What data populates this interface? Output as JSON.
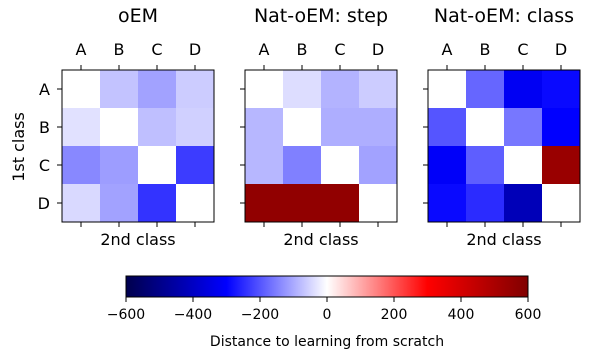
{
  "chart_data": {
    "type": "heatmap",
    "panels": [
      {
        "title": "oEM",
        "values": [
          [
            0,
            -70,
            -110,
            -60
          ],
          [
            -35,
            0,
            -75,
            -55
          ],
          [
            -140,
            -115,
            0,
            -230
          ],
          [
            -45,
            -110,
            -240,
            0
          ]
        ]
      },
      {
        "title": "Nat-oEM: step",
        "values": [
          [
            0,
            -40,
            -90,
            -60
          ],
          [
            -85,
            0,
            -95,
            -95
          ],
          [
            -85,
            -150,
            0,
            -110
          ],
          [
            560,
            560,
            560,
            0
          ]
        ]
      },
      {
        "title": "Nat-oEM: class",
        "values": [
          [
            0,
            -180,
            -320,
            -290
          ],
          [
            -200,
            0,
            -160,
            -300
          ],
          [
            -310,
            -190,
            0,
            540
          ],
          [
            -290,
            -250,
            -420,
            0
          ]
        ]
      }
    ],
    "x_categories": [
      "A",
      "B",
      "C",
      "D"
    ],
    "y_categories": [
      "A",
      "B",
      "C",
      "D"
    ],
    "xlabel": "2nd class",
    "ylabel": "1st class",
    "colorbar": {
      "colormap": "seismic",
      "min": -600,
      "max": 600,
      "ticks": [
        -600,
        -400,
        -200,
        0,
        200,
        400,
        600
      ],
      "tick_labels": [
        "−600",
        "−400",
        "−200",
        "0",
        "200",
        "400",
        "600"
      ],
      "label": "Distance to learning from scratch",
      "orientation": "horizontal"
    }
  }
}
